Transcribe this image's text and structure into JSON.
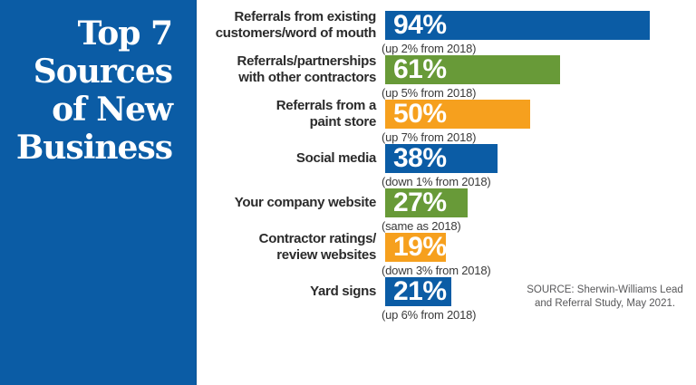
{
  "sidebar": {
    "title_lines": [
      "Top 7",
      "Sources",
      "of New",
      "Business"
    ]
  },
  "chart_data": {
    "type": "bar",
    "orientation": "horizontal",
    "title": "Top 7 Sources of New Business",
    "xlim": [
      0,
      100
    ],
    "unit": "%",
    "legend": "none",
    "grid": false,
    "items": [
      {
        "label_lines": [
          "Referrals from existing",
          "customers/word of mouth"
        ],
        "value": 94,
        "value_label": "94%",
        "caption": "(up 2% from 2018)",
        "color": "#0B5CA5"
      },
      {
        "label_lines": [
          "Referrals/partnerships",
          "with other contractors"
        ],
        "value": 61,
        "value_label": "61%",
        "caption": "(up 5% from 2018)",
        "color": "#689A38"
      },
      {
        "label_lines": [
          "Referrals from a",
          "paint store"
        ],
        "value": 50,
        "value_label": "50%",
        "caption": "(up 7% from 2018)",
        "color": "#F6A01E"
      },
      {
        "label_lines": [
          "Social media"
        ],
        "value": 38,
        "value_label": "38%",
        "caption": "(down 1% from 2018)",
        "color": "#0B5CA5"
      },
      {
        "label_lines": [
          "Your company website"
        ],
        "value": 27,
        "value_label": "27%",
        "caption": "(same as 2018)",
        "color": "#689A38"
      },
      {
        "label_lines": [
          "Contractor ratings/",
          "review websites"
        ],
        "value": 19,
        "value_label": "19%",
        "caption": "(down 3% from 2018)",
        "color": "#F6A01E"
      },
      {
        "label_lines": [
          "Yard signs"
        ],
        "value": 21,
        "value_label": "21%",
        "caption": "(up 6% from 2018)",
        "color": "#0B5CA5"
      }
    ],
    "source": "SOURCE: Sherwin-Williams Lead and Referral Study, May 2021."
  },
  "source_note": {
    "line1": "SOURCE: Sherwin-Williams Lead",
    "line2": "and Referral Study, May 2021."
  },
  "colors": {
    "blue": "#0B5CA5",
    "green": "#689A38",
    "orange": "#F6A01E",
    "sidebar_bg": "#0B5CA5",
    "label_text": "#2B2B2B",
    "caption_text": "#3A3A3A",
    "source_text": "#58585A",
    "bar_value_text": "#FFFFFF"
  }
}
